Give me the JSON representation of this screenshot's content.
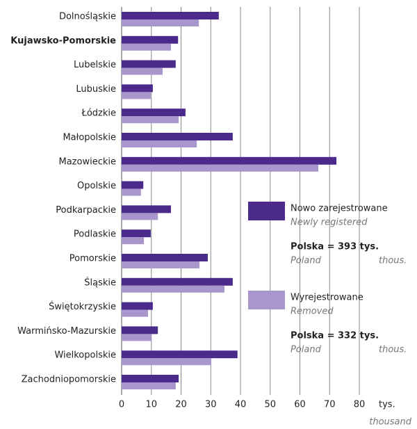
{
  "chart_data": {
    "type": "bar",
    "orientation": "horizontal",
    "categories": [
      "Dolnośląskie",
      "Kujawsko-Pomorskie",
      "Lubelskie",
      "Lubuskie",
      "Łódzkie",
      "Małopolskie",
      "Mazowieckie",
      "Opolskie",
      "Podkarpackie",
      "Podlaskie",
      "Pomorskie",
      "Śląskie",
      "Świętokrzyskie",
      "Warmińsko-Mazurskie",
      "Wielkopolskie",
      "Zachodniopomorskie"
    ],
    "highlight": "Kujawsko-Pomorskie",
    "series": [
      {
        "name": "Nowo zarejestrowane",
        "name_en": "Newly registered",
        "total": "Polska = 393 tys.",
        "total_en": [
          "Poland",
          "thous."
        ],
        "color": "#4b2a8c",
        "values": [
          32.7,
          19,
          18.2,
          10.5,
          21.5,
          37.4,
          72.3,
          7.3,
          16.6,
          9.8,
          29,
          37.4,
          10.5,
          12.2,
          39,
          19.2
        ]
      },
      {
        "name": "Wyrejestrowane",
        "name_en": "Removed",
        "total": "Polska = 332 tys.",
        "total_en": [
          "Poland",
          "thous."
        ],
        "color": "#a896cc",
        "values": [
          26,
          16.6,
          13.8,
          9.8,
          19.2,
          25.3,
          66.2,
          6.5,
          12.2,
          7.5,
          26.2,
          34.6,
          8.9,
          10,
          30.2,
          18.2
        ]
      }
    ],
    "xlim": [
      0,
      80
    ],
    "xticks": [
      0,
      10,
      20,
      30,
      40,
      50,
      60,
      70,
      80
    ],
    "x_unit": "tys.",
    "x_unit_en": "thousand",
    "grid": true
  }
}
